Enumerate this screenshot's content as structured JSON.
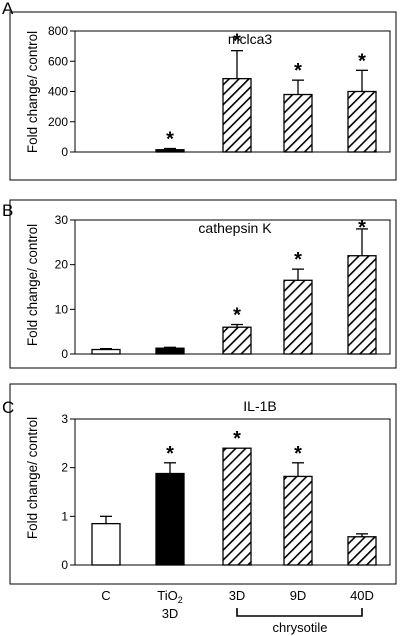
{
  "chart_data": [
    {
      "type": "bar",
      "panel_label": "A",
      "title": "mclca3",
      "ylabel": "Fold change/ control",
      "ylim": [
        0,
        800
      ],
      "yticks": [
        "0",
        "200",
        "400",
        "600",
        "800"
      ],
      "categories": [
        "C",
        "TiO2 3D",
        "3D",
        "9D",
        "40D"
      ],
      "values": [
        0,
        15,
        485,
        380,
        400
      ],
      "errors": [
        0,
        8,
        185,
        95,
        140
      ],
      "significance": [
        false,
        true,
        true,
        true,
        true
      ]
    },
    {
      "type": "bar",
      "panel_label": "B",
      "title": "cathepsin K",
      "ylabel": "Fold change/ control",
      "ylim": [
        0,
        30
      ],
      "yticks": [
        "0",
        "10",
        "20",
        "30"
      ],
      "categories": [
        "C",
        "TiO2 3D",
        "3D",
        "9D",
        "40D"
      ],
      "values": [
        1.0,
        1.3,
        6.0,
        16.5,
        22.0
      ],
      "errors": [
        0.2,
        0.2,
        0.6,
        2.5,
        6.0
      ],
      "significance": [
        false,
        false,
        true,
        true,
        true
      ]
    },
    {
      "type": "bar",
      "panel_label": "C",
      "title": "IL-1B",
      "ylabel": "Fold change/ control",
      "ylim": [
        0,
        3
      ],
      "yticks": [
        "0",
        "1",
        "2",
        "3"
      ],
      "categories": [
        "C",
        "TiO2 3D",
        "3D",
        "9D",
        "40D"
      ],
      "values": [
        0.85,
        1.88,
        2.4,
        1.82,
        0.58
      ],
      "errors": [
        0.15,
        0.22,
        0.0,
        0.28,
        0.06
      ],
      "significance": [
        false,
        true,
        true,
        true,
        false
      ]
    }
  ],
  "x_axis": {
    "labels": [
      "C",
      "TiO",
      "3D",
      "9D",
      "40D"
    ],
    "tio2_subscript": "2",
    "tio2_second_line": "3D",
    "group_label": "chrysotile"
  },
  "bar_styles": [
    "white",
    "black",
    "hatch",
    "hatch",
    "hatch"
  ],
  "significance_marker": "*",
  "colors": {
    "ink": "#000000",
    "background": "#ffffff"
  }
}
